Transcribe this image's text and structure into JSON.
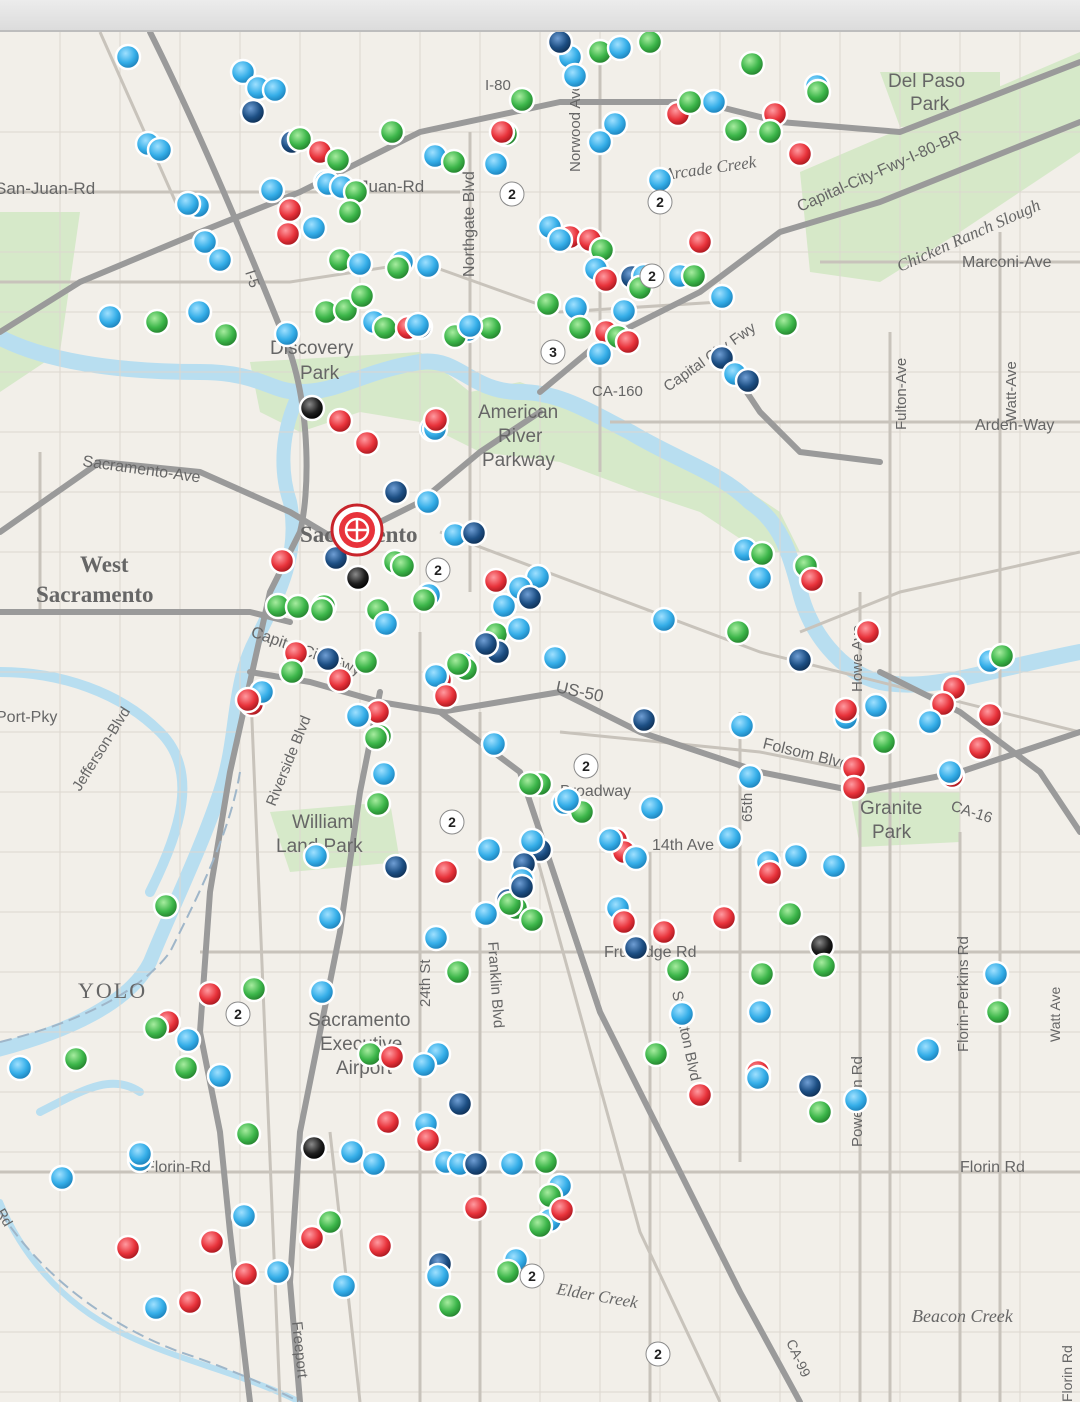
{
  "colors": {
    "blue": "#35aee8",
    "green": "#3cb64a",
    "red": "#e8333b",
    "navy": "#1d4f84",
    "black": "#1f1f1f",
    "river": "#b8def0",
    "park": "#d3e8c5",
    "freeway": "#8e8e8e"
  },
  "map": {
    "labels": [
      {
        "text": "San-Juan-Rd"
      },
      {
        "text": "Juan-Rd"
      },
      {
        "text": "I-80"
      },
      {
        "text": "Del Paso"
      },
      {
        "text": "Park"
      },
      {
        "text": "Capital-City-Fwy-I-80-BR"
      },
      {
        "text": "Arcade Creek"
      },
      {
        "text": "Chicken Ranch Slough"
      },
      {
        "text": "Marconi-Ave"
      },
      {
        "text": "Northgate Blvd"
      },
      {
        "text": "Norwood Ave"
      },
      {
        "text": "I-5"
      },
      {
        "text": "Discovery"
      },
      {
        "text": "Park"
      },
      {
        "text": "American"
      },
      {
        "text": "River"
      },
      {
        "text": "Parkway"
      },
      {
        "text": "CA-160"
      },
      {
        "text": "Capital City Fwy"
      },
      {
        "text": "Fulton-Ave"
      },
      {
        "text": "Watt-Ave"
      },
      {
        "text": "Arden-Way"
      },
      {
        "text": "Sacramento-Ave"
      },
      {
        "text": "West"
      },
      {
        "text": "Sacramento"
      },
      {
        "text": "Sacramento"
      },
      {
        "text": "Capital City Fwy"
      },
      {
        "text": "US-50"
      },
      {
        "text": "Folsom Blvd"
      },
      {
        "text": "Howe Ave"
      },
      {
        "text": "65th St"
      },
      {
        "text": "Granite"
      },
      {
        "text": "Park"
      },
      {
        "text": "CA-16"
      },
      {
        "text": "Port-Pky"
      },
      {
        "text": "Jefferson-Blvd"
      },
      {
        "text": "Riverside Blvd"
      },
      {
        "text": "William"
      },
      {
        "text": "Land Park"
      },
      {
        "text": "Broadway"
      },
      {
        "text": "14th Ave"
      },
      {
        "text": "Fruitridge Rd"
      },
      {
        "text": "24th St"
      },
      {
        "text": "Franklin Blvd"
      },
      {
        "text": "Stockton Blvd"
      },
      {
        "text": "Power Inn Rd"
      },
      {
        "text": "Florin-Perkins Rd"
      },
      {
        "text": "YOLO"
      },
      {
        "text": "Sacramento"
      },
      {
        "text": "Executive"
      },
      {
        "text": "Airport"
      },
      {
        "text": "Florin Rd"
      },
      {
        "text": "Florin-Rd"
      },
      {
        "text": "Freeport"
      },
      {
        "text": "Elder Creek"
      },
      {
        "text": "Beacon Creek"
      },
      {
        "text": "CA-99"
      },
      {
        "text": "Florin Rd"
      },
      {
        "text": "Watt Ave"
      },
      {
        "text": "Rd"
      }
    ],
    "clusters": [
      {
        "count": "2"
      },
      {
        "count": "2"
      },
      {
        "count": "2"
      },
      {
        "count": "3"
      },
      {
        "count": "2"
      },
      {
        "count": "2"
      },
      {
        "count": "2"
      },
      {
        "count": "2"
      },
      {
        "count": "2"
      },
      {
        "count": "2"
      }
    ],
    "markers": [
      {
        "color": "blue"
      },
      {
        "color": "blue"
      },
      {
        "color": "blue"
      },
      {
        "color": "green"
      },
      {
        "color": "navy"
      },
      {
        "color": "blue"
      },
      {
        "color": "green"
      },
      {
        "color": "blue"
      },
      {
        "color": "green"
      },
      {
        "color": "blue"
      },
      {
        "color": "green"
      },
      {
        "color": "blue"
      },
      {
        "color": "navy"
      },
      {
        "color": "blue"
      },
      {
        "color": "blue"
      },
      {
        "color": "green"
      },
      {
        "color": "green"
      },
      {
        "color": "blue"
      },
      {
        "color": "red"
      },
      {
        "color": "blue"
      },
      {
        "color": "green"
      },
      {
        "color": "red"
      },
      {
        "color": "green"
      },
      {
        "color": "green"
      },
      {
        "color": "blue"
      },
      {
        "color": "blue"
      },
      {
        "color": "navy"
      },
      {
        "color": "green"
      },
      {
        "color": "red"
      },
      {
        "color": "green"
      },
      {
        "color": "blue"
      },
      {
        "color": "green"
      },
      {
        "color": "blue"
      },
      {
        "color": "green"
      },
      {
        "color": "red"
      },
      {
        "color": "blue"
      },
      {
        "color": "blue"
      },
      {
        "color": "blue"
      },
      {
        "color": "blue"
      },
      {
        "color": "red"
      },
      {
        "color": "blue"
      },
      {
        "color": "blue"
      },
      {
        "color": "green"
      },
      {
        "color": "green"
      },
      {
        "color": "blue"
      },
      {
        "color": "red"
      },
      {
        "color": "blue"
      },
      {
        "color": "red"
      },
      {
        "color": "blue"
      },
      {
        "color": "blue"
      },
      {
        "color": "red"
      },
      {
        "color": "blue"
      },
      {
        "color": "green"
      },
      {
        "color": "blue"
      },
      {
        "color": "blue"
      },
      {
        "color": "blue"
      },
      {
        "color": "green"
      },
      {
        "color": "blue"
      },
      {
        "color": "red"
      },
      {
        "color": "blue"
      },
      {
        "color": "green"
      },
      {
        "color": "navy"
      },
      {
        "color": "blue"
      },
      {
        "color": "blue"
      },
      {
        "color": "red"
      },
      {
        "color": "green"
      },
      {
        "color": "blue"
      },
      {
        "color": "red"
      },
      {
        "color": "blue"
      },
      {
        "color": "green"
      },
      {
        "color": "blue"
      },
      {
        "color": "green"
      },
      {
        "color": "blue"
      },
      {
        "color": "green"
      },
      {
        "color": "blue"
      },
      {
        "color": "green"
      },
      {
        "color": "green"
      },
      {
        "color": "green"
      },
      {
        "color": "blue"
      },
      {
        "color": "green"
      },
      {
        "color": "red"
      },
      {
        "color": "navy"
      },
      {
        "color": "green"
      },
      {
        "color": "blue"
      },
      {
        "color": "blue"
      },
      {
        "color": "green"
      },
      {
        "color": "blue"
      },
      {
        "color": "red"
      },
      {
        "color": "green"
      },
      {
        "color": "blue"
      },
      {
        "color": "green"
      },
      {
        "color": "blue"
      },
      {
        "color": "blue"
      },
      {
        "color": "green"
      },
      {
        "color": "red"
      },
      {
        "color": "navy"
      },
      {
        "color": "blue"
      },
      {
        "color": "navy"
      },
      {
        "color": "green"
      },
      {
        "color": "black"
      },
      {
        "color": "red"
      },
      {
        "color": "red"
      },
      {
        "color": "blue"
      },
      {
        "color": "blue"
      },
      {
        "color": "red"
      },
      {
        "color": "navy"
      },
      {
        "color": "blue"
      },
      {
        "color": "blue"
      },
      {
        "color": "navy"
      },
      {
        "color": "red"
      },
      {
        "color": "navy"
      },
      {
        "color": "green"
      },
      {
        "color": "green"
      },
      {
        "color": "black"
      },
      {
        "color": "blue"
      },
      {
        "color": "green"
      },
      {
        "color": "green"
      },
      {
        "color": "blue"
      },
      {
        "color": "blue"
      },
      {
        "color": "blue"
      },
      {
        "color": "red"
      },
      {
        "color": "navy"
      },
      {
        "color": "green"
      },
      {
        "color": "blue"
      },
      {
        "color": "blue"
      },
      {
        "color": "green"
      },
      {
        "color": "green"
      },
      {
        "color": "green"
      },
      {
        "color": "green"
      },
      {
        "color": "green"
      },
      {
        "color": "blue"
      },
      {
        "color": "red"
      },
      {
        "color": "navy"
      },
      {
        "color": "green"
      },
      {
        "color": "red"
      },
      {
        "color": "green"
      },
      {
        "color": "red"
      },
      {
        "color": "navy"
      },
      {
        "color": "red"
      },
      {
        "color": "blue"
      },
      {
        "color": "red"
      },
      {
        "color": "blue"
      },
      {
        "color": "red"
      },
      {
        "color": "green"
      },
      {
        "color": "blue"
      },
      {
        "color": "red"
      },
      {
        "color": "green"
      },
      {
        "color": "navy"
      },
      {
        "color": "blue"
      },
      {
        "color": "green"
      },
      {
        "color": "blue"
      },
      {
        "color": "green"
      },
      {
        "color": "blue"
      },
      {
        "color": "blue"
      },
      {
        "color": "green"
      },
      {
        "color": "navy"
      },
      {
        "color": "blue"
      },
      {
        "color": "green"
      },
      {
        "color": "blue"
      },
      {
        "color": "green"
      },
      {
        "color": "red"
      },
      {
        "color": "blue"
      },
      {
        "color": "green"
      },
      {
        "color": "red"
      },
      {
        "color": "red"
      },
      {
        "color": "red"
      },
      {
        "color": "red"
      },
      {
        "color": "blue"
      },
      {
        "color": "green"
      },
      {
        "color": "blue"
      },
      {
        "color": "red"
      },
      {
        "color": "blue"
      },
      {
        "color": "red"
      },
      {
        "color": "red"
      },
      {
        "color": "blue"
      },
      {
        "color": "blue"
      },
      {
        "color": "blue"
      },
      {
        "color": "red"
      },
      {
        "color": "red"
      },
      {
        "color": "navy"
      },
      {
        "color": "blue"
      },
      {
        "color": "green"
      },
      {
        "color": "blue"
      },
      {
        "color": "green"
      },
      {
        "color": "blue"
      },
      {
        "color": "blue"
      },
      {
        "color": "green"
      },
      {
        "color": "navy"
      },
      {
        "color": "blue"
      },
      {
        "color": "red"
      },
      {
        "color": "red"
      },
      {
        "color": "blue"
      },
      {
        "color": "blue"
      },
      {
        "color": "navy"
      },
      {
        "color": "blue"
      },
      {
        "color": "navy"
      },
      {
        "color": "green"
      },
      {
        "color": "green"
      },
      {
        "color": "green"
      },
      {
        "color": "blue"
      },
      {
        "color": "blue"
      },
      {
        "color": "blue"
      },
      {
        "color": "blue"
      },
      {
        "color": "blue"
      },
      {
        "color": "red"
      },
      {
        "color": "blue"
      },
      {
        "color": "green"
      },
      {
        "color": "red"
      },
      {
        "color": "black"
      },
      {
        "color": "green"
      },
      {
        "color": "blue"
      },
      {
        "color": "green"
      },
      {
        "color": "blue"
      },
      {
        "color": "blue"
      },
      {
        "color": "navy"
      },
      {
        "color": "green"
      },
      {
        "color": "red"
      },
      {
        "color": "blue"
      },
      {
        "color": "blue"
      },
      {
        "color": "green"
      },
      {
        "color": "red"
      },
      {
        "color": "blue"
      },
      {
        "color": "green"
      },
      {
        "color": "red"
      },
      {
        "color": "navy"
      },
      {
        "color": "red"
      },
      {
        "color": "green"
      },
      {
        "color": "green"
      },
      {
        "color": "blue"
      },
      {
        "color": "navy"
      },
      {
        "color": "red"
      },
      {
        "color": "blue"
      },
      {
        "color": "blue"
      },
      {
        "color": "green"
      },
      {
        "color": "blue"
      },
      {
        "color": "green"
      },
      {
        "color": "navy"
      },
      {
        "color": "blue"
      },
      {
        "color": "green"
      },
      {
        "color": "red"
      },
      {
        "color": "red"
      },
      {
        "color": "blue"
      },
      {
        "color": "green"
      },
      {
        "color": "green"
      },
      {
        "color": "blue"
      },
      {
        "color": "green"
      },
      {
        "color": "blue"
      },
      {
        "color": "green"
      },
      {
        "color": "red"
      },
      {
        "color": "blue"
      },
      {
        "color": "blue"
      },
      {
        "color": "navy"
      },
      {
        "color": "blue"
      },
      {
        "color": "black"
      },
      {
        "color": "blue"
      },
      {
        "color": "blue"
      },
      {
        "color": "red"
      },
      {
        "color": "red"
      },
      {
        "color": "blue"
      },
      {
        "color": "blue"
      },
      {
        "color": "navy"
      },
      {
        "color": "blue"
      },
      {
        "color": "green"
      },
      {
        "color": "blue"
      },
      {
        "color": "green"
      },
      {
        "color": "blue"
      },
      {
        "color": "blue"
      },
      {
        "color": "blue"
      },
      {
        "color": "green"
      },
      {
        "color": "red"
      },
      {
        "color": "blue"
      },
      {
        "color": "red"
      },
      {
        "color": "green"
      },
      {
        "color": "blue"
      },
      {
        "color": "red"
      },
      {
        "color": "green"
      },
      {
        "color": "red"
      },
      {
        "color": "red"
      },
      {
        "color": "navy"
      },
      {
        "color": "blue"
      },
      {
        "color": "green"
      },
      {
        "color": "blue"
      },
      {
        "color": "green"
      },
      {
        "color": "red"
      },
      {
        "color": "blue"
      },
      {
        "color": "red"
      },
      {
        "color": "red"
      },
      {
        "color": "blue"
      },
      {
        "color": "blue"
      }
    ]
  }
}
